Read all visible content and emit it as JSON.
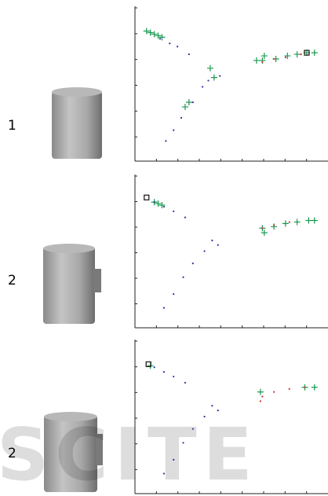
{
  "rows": [
    {
      "label": "1"
    },
    {
      "label": "2"
    },
    {
      "label": "2"
    }
  ],
  "watermark": "SCITE",
  "chart_data": [
    {
      "type": "scatter",
      "xlim": [
        0,
        1
      ],
      "ylim": [
        0,
        1
      ],
      "series": [
        {
          "color": "#1a9a50",
          "marker": "plus",
          "x": [
            0.06,
            0.08,
            0.1,
            0.12,
            0.14,
            0.39,
            0.41,
            0.28,
            0.26,
            0.63,
            0.66,
            0.67,
            0.73,
            0.79,
            0.84,
            0.89,
            0.93
          ],
          "values": [
            0.84,
            0.83,
            0.82,
            0.81,
            0.8,
            0.6,
            0.54,
            0.38,
            0.35,
            0.65,
            0.65,
            0.68,
            0.66,
            0.68,
            0.69,
            0.7,
            0.7
          ]
        },
        {
          "color": "#3030a0",
          "marker": "dot",
          "x": [
            0.13,
            0.18,
            0.22,
            0.28,
            0.16,
            0.2,
            0.24,
            0.3,
            0.35,
            0.38,
            0.44
          ],
          "values": [
            0.79,
            0.76,
            0.74,
            0.69,
            0.13,
            0.2,
            0.28,
            0.38,
            0.48,
            0.52,
            0.55
          ]
        },
        {
          "color": "#d03030",
          "marker": "dot",
          "x": [
            0.66,
            0.72,
            0.78,
            0.86
          ],
          "values": [
            0.64,
            0.66,
            0.67,
            0.69
          ]
        },
        {
          "color": "#222222",
          "marker": "square",
          "x": [
            0.89
          ],
          "values": [
            0.7
          ]
        }
      ]
    },
    {
      "type": "scatter",
      "xlim": [
        0,
        1
      ],
      "ylim": [
        0,
        1
      ],
      "series": [
        {
          "color": "#1a9a50",
          "marker": "plus",
          "x": [
            0.1,
            0.12,
            0.14,
            0.66,
            0.67,
            0.72,
            0.78,
            0.84,
            0.9,
            0.93
          ],
          "values": [
            0.82,
            0.81,
            0.8,
            0.65,
            0.62,
            0.66,
            0.68,
            0.69,
            0.7,
            0.7
          ]
        },
        {
          "color": "#3030a0",
          "marker": "dot",
          "x": [
            0.1,
            0.15,
            0.2,
            0.26,
            0.15,
            0.2,
            0.25,
            0.3,
            0.36,
            0.4,
            0.43
          ],
          "values": [
            0.82,
            0.79,
            0.76,
            0.72,
            0.13,
            0.22,
            0.33,
            0.42,
            0.5,
            0.57,
            0.54
          ]
        },
        {
          "color": "#d03030",
          "marker": "dot",
          "x": [
            0.66,
            0.72,
            0.8
          ],
          "values": [
            0.65,
            0.67,
            0.69
          ]
        },
        {
          "color": "#222222",
          "marker": "square",
          "x": [
            0.06
          ],
          "values": [
            0.85
          ]
        }
      ]
    },
    {
      "type": "scatter",
      "xlim": [
        0,
        1
      ],
      "ylim": [
        0,
        1
      ],
      "series": [
        {
          "color": "#1a9a50",
          "marker": "plus",
          "x": [
            0.08,
            0.65,
            0.88,
            0.93
          ],
          "values": [
            0.83,
            0.66,
            0.69,
            0.69
          ]
        },
        {
          "color": "#3030a0",
          "marker": "dot",
          "x": [
            0.1,
            0.15,
            0.2,
            0.26,
            0.15,
            0.2,
            0.25,
            0.3,
            0.36,
            0.4,
            0.43
          ],
          "values": [
            0.82,
            0.79,
            0.76,
            0.72,
            0.13,
            0.22,
            0.33,
            0.42,
            0.5,
            0.57,
            0.54
          ]
        },
        {
          "color": "#d03030",
          "marker": "dot",
          "x": [
            0.66,
            0.72,
            0.8,
            0.88,
            0.65
          ],
          "values": [
            0.63,
            0.66,
            0.68,
            0.69,
            0.6
          ]
        },
        {
          "color": "#222222",
          "marker": "square",
          "x": [
            0.07
          ],
          "values": [
            0.84
          ]
        }
      ]
    }
  ]
}
